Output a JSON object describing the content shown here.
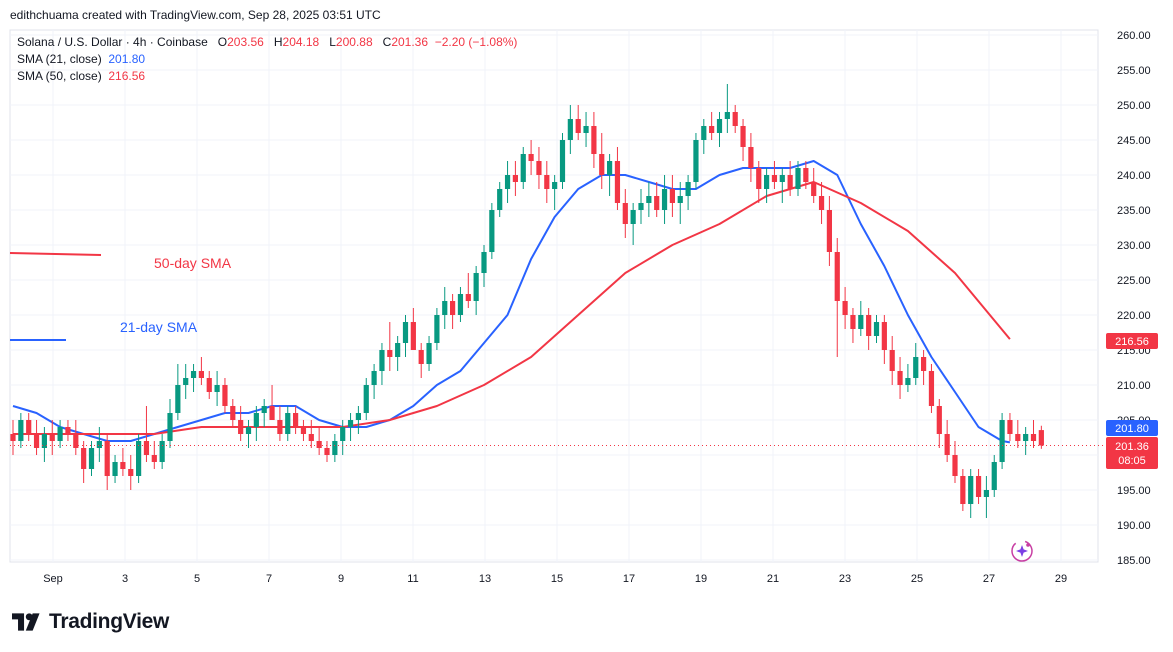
{
  "attribution": "edithchuama created with TradingView.com, Sep 28, 2025 03:51 UTC",
  "legend": {
    "symbol": "Solana / U.S. Dollar · 4h · Coinbase",
    "o_label": "O",
    "o": "203.56",
    "h_label": "H",
    "h": "204.18",
    "l_label": "L",
    "l": "200.88",
    "c_label": "C",
    "c": "201.36",
    "change": "−2.20 (−1.08%)",
    "sma21_label": "SMA (21, close)",
    "sma21_value": "201.80",
    "sma50_label": "SMA (50, close)",
    "sma50_value": "216.56"
  },
  "annotations": {
    "sma50": "50-day SMA",
    "sma21": "21-day SMA"
  },
  "price_badges": {
    "sma50": "216.56",
    "sma21": "201.80",
    "last": "201.36",
    "countdown": "08:05"
  },
  "colors": {
    "up": "#089981",
    "down": "#f23645",
    "sma21": "#2962ff",
    "sma50": "#f23645",
    "grid": "#f0f3fa",
    "text": "#131722"
  },
  "brand": "TradingView",
  "chart_data": {
    "type": "candlestick",
    "symbol": "SOL/USD",
    "timeframe": "4h",
    "x_ticks": [
      "Sep",
      "3",
      "5",
      "7",
      "9",
      "11",
      "13",
      "15",
      "17",
      "19",
      "21",
      "23",
      "25",
      "27",
      "29"
    ],
    "y_ticks": [
      "260.00",
      "255.00",
      "250.00",
      "245.00",
      "240.00",
      "235.00",
      "230.00",
      "225.00",
      "220.00",
      "215.00",
      "210.00",
      "205.00",
      "200.00",
      "195.00",
      "190.00",
      "185.00"
    ],
    "ylim": [
      185,
      260
    ],
    "grid": true,
    "candle_interval_days": 0.1667,
    "first_candle": "Aug 31 00:00",
    "candles": [
      [
        203,
        205,
        200,
        202
      ],
      [
        202,
        206,
        201,
        205
      ],
      [
        205,
        206,
        202,
        203
      ],
      [
        203,
        205,
        200,
        201
      ],
      [
        201,
        204,
        199,
        203
      ],
      [
        203,
        205,
        200,
        202
      ],
      [
        202,
        205,
        201,
        204
      ],
      [
        204,
        205,
        202,
        203
      ],
      [
        203,
        205,
        200,
        201
      ],
      [
        201,
        202,
        196,
        198
      ],
      [
        198,
        202,
        197,
        201
      ],
      [
        201,
        204,
        199,
        202
      ],
      [
        202,
        203,
        195,
        197
      ],
      [
        197,
        200,
        196,
        199
      ],
      [
        199,
        201,
        197,
        198
      ],
      [
        198,
        200,
        195,
        197
      ],
      [
        197,
        203,
        196,
        202
      ],
      [
        202,
        207,
        199,
        200
      ],
      [
        200,
        202,
        198,
        199
      ],
      [
        199,
        203,
        198,
        202
      ],
      [
        202,
        208,
        201,
        206
      ],
      [
        206,
        213,
        205,
        210
      ],
      [
        210,
        213,
        208,
        211
      ],
      [
        211,
        213,
        209,
        212
      ],
      [
        212,
        214,
        210,
        211
      ],
      [
        211,
        212,
        208,
        209
      ],
      [
        209,
        212,
        207,
        210
      ],
      [
        210,
        211,
        206,
        207
      ],
      [
        207,
        208,
        204,
        205
      ],
      [
        205,
        207,
        202,
        203
      ],
      [
        203,
        205,
        201,
        204
      ],
      [
        204,
        207,
        202,
        206
      ],
      [
        206,
        208,
        204,
        207
      ],
      [
        207,
        210,
        205,
        205
      ],
      [
        205,
        207,
        202,
        203
      ],
      [
        203,
        207,
        202,
        206
      ],
      [
        206,
        207,
        203,
        204
      ],
      [
        204,
        205,
        202,
        203
      ],
      [
        203,
        205,
        201,
        202
      ],
      [
        202,
        204,
        200,
        201
      ],
      [
        201,
        202,
        199,
        200
      ],
      [
        200,
        203,
        199,
        202
      ],
      [
        202,
        205,
        200,
        204
      ],
      [
        204,
        206,
        202,
        205
      ],
      [
        205,
        207,
        203,
        206
      ],
      [
        206,
        211,
        205,
        210
      ],
      [
        210,
        213,
        208,
        212
      ],
      [
        212,
        216,
        210,
        215
      ],
      [
        215,
        219,
        212,
        214
      ],
      [
        214,
        217,
        212,
        216
      ],
      [
        216,
        220,
        214,
        219
      ],
      [
        219,
        221,
        215,
        215
      ],
      [
        215,
        216,
        211,
        213
      ],
      [
        213,
        217,
        212,
        216
      ],
      [
        216,
        221,
        215,
        220
      ],
      [
        220,
        224,
        218,
        222
      ],
      [
        222,
        223,
        218,
        220
      ],
      [
        220,
        224,
        219,
        223
      ],
      [
        223,
        226,
        221,
        222
      ],
      [
        222,
        227,
        220,
        226
      ],
      [
        226,
        230,
        224,
        229
      ],
      [
        229,
        236,
        228,
        235
      ],
      [
        235,
        239,
        234,
        238
      ],
      [
        238,
        242,
        236,
        240
      ],
      [
        240,
        242,
        237,
        239
      ],
      [
        239,
        244,
        238,
        243
      ],
      [
        243,
        245,
        240,
        242
      ],
      [
        242,
        244,
        238,
        240
      ],
      [
        240,
        242,
        236,
        238
      ],
      [
        238,
        240,
        235,
        239
      ],
      [
        239,
        246,
        238,
        245
      ],
      [
        245,
        250,
        243,
        248
      ],
      [
        248,
        250,
        245,
        246
      ],
      [
        246,
        249,
        244,
        247
      ],
      [
        247,
        249,
        241,
        243
      ],
      [
        243,
        246,
        238,
        240
      ],
      [
        240,
        243,
        237,
        242
      ],
      [
        242,
        244,
        235,
        236
      ],
      [
        236,
        238,
        231,
        233
      ],
      [
        233,
        236,
        230,
        235
      ],
      [
        235,
        238,
        233,
        236
      ],
      [
        236,
        239,
        234,
        237
      ],
      [
        237,
        239,
        234,
        235
      ],
      [
        235,
        240,
        233,
        238
      ],
      [
        238,
        240,
        234,
        236
      ],
      [
        236,
        239,
        233,
        237
      ],
      [
        237,
        240,
        235,
        239
      ],
      [
        239,
        246,
        238,
        245
      ],
      [
        245,
        248,
        243,
        247
      ],
      [
        247,
        249,
        245,
        246
      ],
      [
        246,
        249,
        244,
        248
      ],
      [
        248,
        253,
        246,
        249
      ],
      [
        249,
        250,
        246,
        247
      ],
      [
        247,
        248,
        242,
        244
      ],
      [
        244,
        246,
        239,
        241
      ],
      [
        241,
        242,
        236,
        238
      ],
      [
        238,
        241,
        236,
        240
      ],
      [
        240,
        242,
        238,
        239
      ],
      [
        239,
        241,
        236,
        240
      ],
      [
        240,
        242,
        237,
        238
      ],
      [
        238,
        242,
        237,
        241
      ],
      [
        241,
        242,
        238,
        239
      ],
      [
        239,
        241,
        236,
        237
      ],
      [
        237,
        239,
        233,
        235
      ],
      [
        235,
        237,
        227,
        229
      ],
      [
        229,
        231,
        214,
        222
      ],
      [
        222,
        224,
        218,
        220
      ],
      [
        220,
        221,
        216,
        218
      ],
      [
        218,
        222,
        217,
        220
      ],
      [
        220,
        221,
        215,
        217
      ],
      [
        217,
        220,
        216,
        219
      ],
      [
        219,
        220,
        213,
        215
      ],
      [
        215,
        217,
        210,
        212
      ],
      [
        212,
        214,
        208,
        210
      ],
      [
        210,
        213,
        209,
        211
      ],
      [
        211,
        216,
        210,
        214
      ],
      [
        214,
        215,
        210,
        212
      ],
      [
        212,
        213,
        206,
        207
      ],
      [
        207,
        208,
        201,
        203
      ],
      [
        203,
        205,
        199,
        200
      ],
      [
        200,
        202,
        196,
        197
      ],
      [
        197,
        198,
        192,
        193
      ],
      [
        193,
        198,
        191,
        197
      ],
      [
        197,
        198,
        193,
        194
      ],
      [
        194,
        197,
        191,
        195
      ],
      [
        195,
        200,
        194,
        199
      ],
      [
        199,
        206,
        198,
        205
      ],
      [
        205,
        206,
        202,
        203
      ],
      [
        203,
        205,
        201,
        202
      ],
      [
        202,
        204,
        200,
        203
      ],
      [
        203,
        205,
        201,
        202
      ],
      [
        203.56,
        204.18,
        200.88,
        201.36
      ]
    ],
    "series": [
      {
        "name": "SMA (21, close)",
        "last": 201.8,
        "points": [
          [
            0,
            207
          ],
          [
            3,
            206
          ],
          [
            6,
            204
          ],
          [
            9,
            203
          ],
          [
            12,
            202
          ],
          [
            15,
            202
          ],
          [
            18,
            203
          ],
          [
            21,
            204
          ],
          [
            24,
            205
          ],
          [
            27,
            206
          ],
          [
            30,
            206
          ],
          [
            33,
            207
          ],
          [
            36,
            207
          ],
          [
            39,
            205
          ],
          [
            42,
            204
          ],
          [
            45,
            204
          ],
          [
            48,
            205
          ],
          [
            51,
            207
          ],
          [
            54,
            210
          ],
          [
            57,
            212
          ],
          [
            60,
            216
          ],
          [
            63,
            220
          ],
          [
            66,
            228
          ],
          [
            69,
            234
          ],
          [
            72,
            238
          ],
          [
            75,
            240
          ],
          [
            78,
            240
          ],
          [
            81,
            239
          ],
          [
            84,
            238
          ],
          [
            87,
            238
          ],
          [
            90,
            240
          ],
          [
            93,
            241
          ],
          [
            96,
            241
          ],
          [
            99,
            241
          ],
          [
            102,
            242
          ],
          [
            105,
            240
          ],
          [
            108,
            233
          ],
          [
            111,
            227
          ],
          [
            114,
            220
          ],
          [
            117,
            214
          ],
          [
            120,
            209
          ],
          [
            123,
            204
          ],
          [
            126,
            202
          ],
          [
            127,
            201.8
          ]
        ]
      },
      {
        "name": "SMA (50, close)",
        "last": 216.56,
        "points": [
          [
            0,
            203
          ],
          [
            6,
            203
          ],
          [
            12,
            203
          ],
          [
            18,
            203
          ],
          [
            24,
            204
          ],
          [
            30,
            204
          ],
          [
            36,
            204
          ],
          [
            42,
            204
          ],
          [
            48,
            205
          ],
          [
            54,
            207
          ],
          [
            60,
            210
          ],
          [
            66,
            214
          ],
          [
            72,
            220
          ],
          [
            78,
            226
          ],
          [
            84,
            230
          ],
          [
            90,
            233
          ],
          [
            96,
            237
          ],
          [
            102,
            239
          ],
          [
            108,
            236
          ],
          [
            114,
            232
          ],
          [
            120,
            226
          ],
          [
            127,
            216.56
          ]
        ]
      }
    ]
  }
}
